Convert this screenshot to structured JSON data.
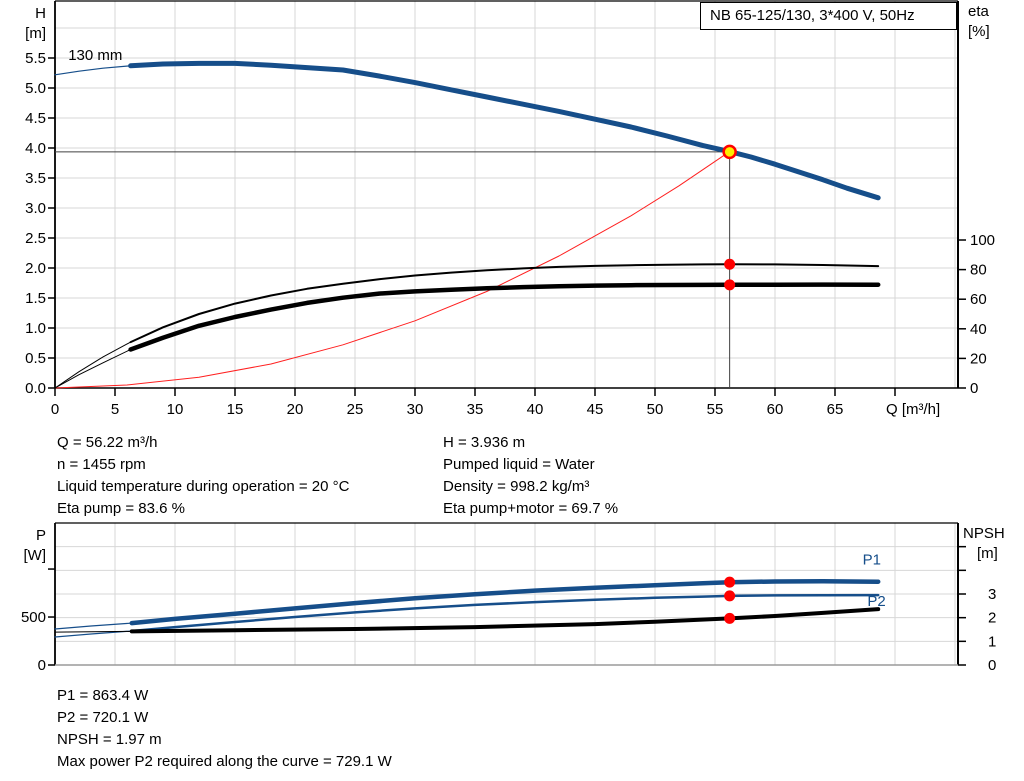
{
  "colors": {
    "curve_blue": "#164e8a",
    "curve_black": "#000000",
    "system_red": "#ff2020",
    "marker_red": "#ff0000",
    "marker_yellow": "#ffee00",
    "grid": "#d7d7d7",
    "crosshair": "#404040",
    "axis": "#000000",
    "frame_bottom_gray": "#9a9a9a"
  },
  "duty_info": {
    "left": [
      "Q = 56.22 m³/h",
      "n = 1455 rpm",
      "Liquid temperature during operation = 20 °C",
      "Eta pump = 83.6 %"
    ],
    "right": [
      "H = 3.936 m",
      "Pumped liquid = Water",
      "Density = 998.2 kg/m³",
      "Eta pump+motor = 69.7 %"
    ]
  },
  "result_info": [
    "P1 = 863.4 W",
    "P2 = 720.1 W",
    "NPSH = 1.97 m",
    "Max power P2 required along the curve = 729.1 W"
  ],
  "chart_data": [
    {
      "type": "line",
      "id": "qh-eta-chart",
      "title": "NB 65-125/130, 3*400 V, 50Hz",
      "x_axis": {
        "label": "Q [m³/h]",
        "min": 0,
        "max": 75.25,
        "grid_step": 5,
        "ticks": [
          {
            "v": 0,
            "label": "0"
          },
          {
            "v": 5,
            "label": "5"
          },
          {
            "v": 10,
            "label": "10"
          },
          {
            "v": 15,
            "label": "15"
          },
          {
            "v": 20,
            "label": "20"
          },
          {
            "v": 25,
            "label": "25"
          },
          {
            "v": 30,
            "label": "30"
          },
          {
            "v": 35,
            "label": "35"
          },
          {
            "v": 40,
            "label": "40"
          },
          {
            "v": 45,
            "label": "45"
          },
          {
            "v": 50,
            "label": "50"
          },
          {
            "v": 55,
            "label": "55"
          },
          {
            "v": 60,
            "label": "60"
          },
          {
            "v": 65,
            "label": "65"
          },
          {
            "v": 70,
            "label": ""
          }
        ]
      },
      "y_left": {
        "label_line1": "H",
        "label_line2": "[m]",
        "min": 0,
        "max": 6.45,
        "ticks": [
          {
            "v": 0,
            "label": "0.0"
          },
          {
            "v": 0.5,
            "label": "0.5"
          },
          {
            "v": 1,
            "label": "1.0"
          },
          {
            "v": 1.5,
            "label": "1.5"
          },
          {
            "v": 2,
            "label": "2.0"
          },
          {
            "v": 2.5,
            "label": "2.5"
          },
          {
            "v": 3,
            "label": "3.0"
          },
          {
            "v": 3.5,
            "label": "3.5"
          },
          {
            "v": 4,
            "label": "4.0"
          },
          {
            "v": 4.5,
            "label": "4.5"
          },
          {
            "v": 5,
            "label": "5.0"
          },
          {
            "v": 5.5,
            "label": "5.5"
          }
        ]
      },
      "y_right": {
        "label_line1": "eta",
        "label_line2": "[%]",
        "min": 0,
        "max": 261.5,
        "ticks": [
          {
            "v": 0,
            "label": "0"
          },
          {
            "v": 20,
            "label": "20"
          },
          {
            "v": 40,
            "label": "40"
          },
          {
            "v": 60,
            "label": "60"
          },
          {
            "v": 80,
            "label": "80"
          },
          {
            "v": 100,
            "label": "100"
          }
        ]
      },
      "grid_h": {
        "axis": "left",
        "values": [
          0.5,
          1,
          1.5,
          2,
          2.5,
          3,
          3.5,
          4,
          4.5,
          5,
          5.5,
          6
        ]
      },
      "crosshair": {
        "q": 56.22,
        "v": 3.936
      },
      "series": [
        {
          "name": "system-curve",
          "axis": "left",
          "color": "#ff2020",
          "width": 1,
          "points": [
            [
              0,
              0
            ],
            [
              6,
              0.05
            ],
            [
              12,
              0.18
            ],
            [
              18,
              0.4
            ],
            [
              24,
              0.72
            ],
            [
              30,
              1.12
            ],
            [
              36,
              1.61
            ],
            [
              42,
              2.2
            ],
            [
              48,
              2.87
            ],
            [
              52,
              3.37
            ],
            [
              56.22,
              3.94
            ]
          ]
        },
        {
          "name": "qh-130mm",
          "axis": "left",
          "color": "#164e8a",
          "width": 5,
          "thin_width": 1.2,
          "thick_from": 6.3,
          "points": [
            [
              0,
              5.22
            ],
            [
              2,
              5.28
            ],
            [
              4,
              5.33
            ],
            [
              6.3,
              5.37
            ],
            [
              9,
              5.4
            ],
            [
              12,
              5.41
            ],
            [
              15,
              5.41
            ],
            [
              18,
              5.38
            ],
            [
              21,
              5.34
            ],
            [
              24,
              5.3
            ],
            [
              27,
              5.2
            ],
            [
              30,
              5.09
            ],
            [
              33,
              4.97
            ],
            [
              36,
              4.85
            ],
            [
              39,
              4.73
            ],
            [
              42,
              4.61
            ],
            [
              45,
              4.48
            ],
            [
              48,
              4.35
            ],
            [
              51,
              4.2
            ],
            [
              54,
              4.04
            ],
            [
              56.22,
              3.94
            ],
            [
              58,
              3.85
            ],
            [
              60,
              3.73
            ],
            [
              62,
              3.6
            ],
            [
              64,
              3.47
            ],
            [
              66,
              3.33
            ],
            [
              68.6,
              3.17
            ]
          ]
        },
        {
          "name": "eta-pump",
          "axis": "right",
          "color": "#000000",
          "width": 2,
          "thin_width": 1,
          "thick_from": 6.3,
          "points": [
            [
              0,
              0
            ],
            [
              2,
              11
            ],
            [
              4,
              21
            ],
            [
              6.3,
              31
            ],
            [
              9,
              41
            ],
            [
              12,
              50
            ],
            [
              15,
              57
            ],
            [
              18,
              62.5
            ],
            [
              21,
              67
            ],
            [
              24,
              70.5
            ],
            [
              27,
              73.5
            ],
            [
              30,
              76
            ],
            [
              33,
              78
            ],
            [
              36,
              79.5
            ],
            [
              39,
              80.8
            ],
            [
              42,
              81.8
            ],
            [
              45,
              82.5
            ],
            [
              48,
              83
            ],
            [
              51,
              83.3
            ],
            [
              54,
              83.5
            ],
            [
              56.22,
              83.6
            ],
            [
              60,
              83.5
            ],
            [
              64,
              83.1
            ],
            [
              68.6,
              82.4
            ]
          ]
        },
        {
          "name": "eta-pump-motor",
          "axis": "right",
          "color": "#000000",
          "width": 4.5,
          "thin_width": 1,
          "thick_from": 6.3,
          "points": [
            [
              0,
              0
            ],
            [
              2,
              9
            ],
            [
              4,
              17
            ],
            [
              6.3,
              26
            ],
            [
              9,
              34
            ],
            [
              12,
              42
            ],
            [
              15,
              48
            ],
            [
              18,
              53
            ],
            [
              21,
              57.5
            ],
            [
              24,
              61
            ],
            [
              27,
              63.8
            ],
            [
              30,
              65.3
            ],
            [
              33,
              66.4
            ],
            [
              36,
              67.4
            ],
            [
              39,
              68.2
            ],
            [
              42,
              68.8
            ],
            [
              45,
              69.2
            ],
            [
              48,
              69.45
            ],
            [
              51,
              69.6
            ],
            [
              54,
              69.65
            ],
            [
              56.22,
              69.7
            ],
            [
              60,
              69.8
            ],
            [
              64,
              69.85
            ],
            [
              68.6,
              69.8
            ]
          ]
        }
      ],
      "plot_labels": [
        {
          "text": "130 mm",
          "q": 1.1,
          "v": 5.47,
          "axis": "left",
          "color": "#000000"
        }
      ],
      "markers": [
        {
          "q": 56.22,
          "v": 3.936,
          "axis": "left",
          "r": 6,
          "fill": "#ffee00",
          "stroke": "#ff0000",
          "name": "duty-point-marker",
          "interactable": true
        },
        {
          "q": 56.22,
          "v": 83.6,
          "axis": "right",
          "r": 5.5,
          "fill": "#ff0000",
          "name": "eta-pump-duty-marker",
          "interactable": false
        },
        {
          "q": 56.22,
          "v": 69.7,
          "axis": "right",
          "r": 5.5,
          "fill": "#ff0000",
          "name": "eta-pump-motor-duty-marker",
          "interactable": false
        }
      ]
    },
    {
      "type": "line",
      "id": "power-npsh-chart",
      "title": "",
      "x_axis": {
        "label": "",
        "min": 0,
        "max": 75.25,
        "grid_step": 5,
        "ticks": []
      },
      "y_left": {
        "label_line1": "P",
        "label_line2": "[W]",
        "min": 0,
        "max": 1480,
        "ticks": [
          {
            "v": 0,
            "label": "0"
          },
          {
            "v": 500,
            "label": "500"
          },
          {
            "v": 1000,
            "label": ""
          }
        ]
      },
      "y_right": {
        "label_line1": "NPSH",
        "label_line2": "[m]",
        "min": 0,
        "max": 6,
        "ticks": [
          {
            "v": 0,
            "label": "0"
          },
          {
            "v": 1,
            "label": "1"
          },
          {
            "v": 2,
            "label": "2"
          },
          {
            "v": 3,
            "label": "3"
          },
          {
            "v": 4,
            "label": ""
          },
          {
            "v": 5,
            "label": ""
          }
        ]
      },
      "grid_h": {
        "axis": "right",
        "values": [
          1,
          2,
          3,
          4,
          5
        ]
      },
      "frame_bottom_gray": true,
      "series": [
        {
          "name": "p1",
          "axis": "left",
          "color": "#164e8a",
          "width": 4.5,
          "thin_width": 1.2,
          "thick_from": 6.4,
          "points": [
            [
              0,
              375
            ],
            [
              3,
              406
            ],
            [
              6.4,
              437
            ],
            [
              10,
              480
            ],
            [
              15,
              535
            ],
            [
              20,
              590
            ],
            [
              25,
              645
            ],
            [
              30,
              695
            ],
            [
              35,
              737
            ],
            [
              40,
              775
            ],
            [
              45,
              805
            ],
            [
              50,
              832
            ],
            [
              54,
              852
            ],
            [
              56.22,
              863
            ],
            [
              60,
              870
            ],
            [
              64,
              872
            ],
            [
              68.6,
              868
            ]
          ]
        },
        {
          "name": "p2",
          "axis": "left",
          "color": "#164e8a",
          "width": 2.5,
          "thin_width": 1.2,
          "thick_from": 6.4,
          "points": [
            [
              0,
              292
            ],
            [
              3,
              323
            ],
            [
              6.4,
              354
            ],
            [
              10,
              395
            ],
            [
              15,
              448
            ],
            [
              20,
              500
            ],
            [
              25,
              548
            ],
            [
              30,
              590
            ],
            [
              35,
              626
            ],
            [
              40,
              656
            ],
            [
              45,
              680
            ],
            [
              50,
              700
            ],
            [
              54,
              713
            ],
            [
              56.22,
              720
            ],
            [
              60,
              725
            ],
            [
              64,
              728
            ],
            [
              68.6,
              729
            ]
          ]
        },
        {
          "name": "npsh",
          "axis": "right",
          "color": "#000000",
          "width": 4,
          "thin_width": 1,
          "thick_from": 6.4,
          "points": [
            [
              0,
              1.39
            ],
            [
              6.4,
              1.42
            ],
            [
              15,
              1.47
            ],
            [
              25,
              1.52
            ],
            [
              35,
              1.6
            ],
            [
              45,
              1.73
            ],
            [
              50,
              1.83
            ],
            [
              56.22,
              1.97
            ],
            [
              60,
              2.07
            ],
            [
              64,
              2.2
            ],
            [
              68.6,
              2.36
            ]
          ]
        }
      ],
      "plot_labels": [
        {
          "text": "P1",
          "q": 67.3,
          "v": 1050,
          "axis": "left",
          "color": "#164e8a"
        },
        {
          "text": "P2",
          "q": 67.7,
          "v": 615,
          "axis": "left",
          "color": "#164e8a"
        }
      ],
      "markers": [
        {
          "q": 56.22,
          "v": 863.4,
          "axis": "left",
          "r": 5.5,
          "fill": "#ff0000",
          "name": "p1-duty-marker",
          "interactable": false
        },
        {
          "q": 56.22,
          "v": 720.1,
          "axis": "left",
          "r": 5.5,
          "fill": "#ff0000",
          "name": "p2-duty-marker",
          "interactable": false
        },
        {
          "q": 56.22,
          "v": 1.97,
          "axis": "right",
          "r": 5.5,
          "fill": "#ff0000",
          "name": "npsh-duty-marker",
          "interactable": false
        }
      ]
    }
  ]
}
